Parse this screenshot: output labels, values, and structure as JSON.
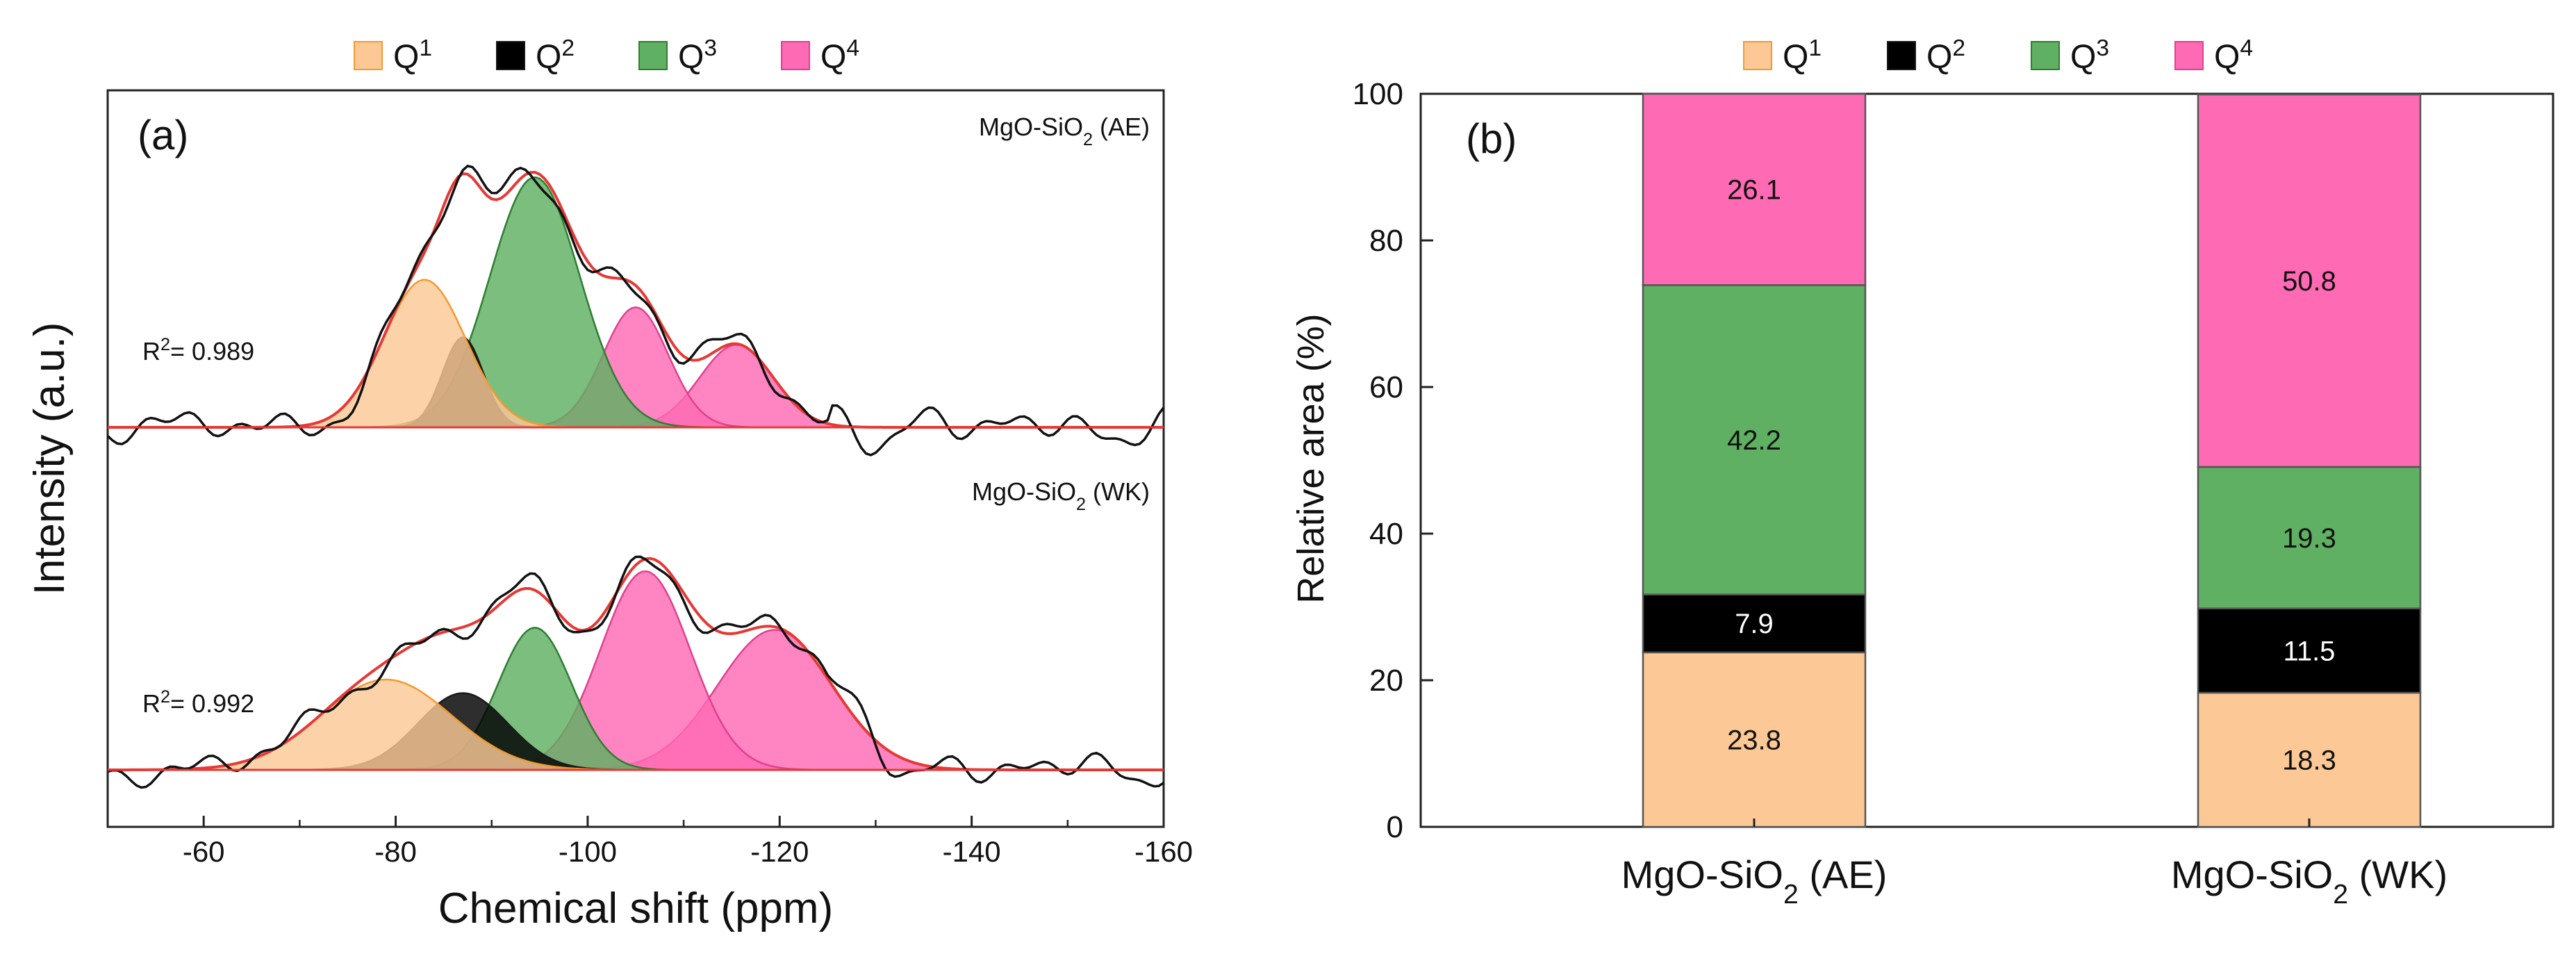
{
  "chart_data": [
    {
      "panel_label": "(a)",
      "type": "line",
      "xlabel": "Chemical shift (ppm)",
      "ylabel": "Intensity (a.u.)",
      "xlim": [
        -50,
        -160
      ],
      "x_ticks": [
        -60,
        -80,
        -100,
        -120,
        -140,
        -160
      ],
      "x_tick_labels": [
        "-60",
        "-80",
        "-100",
        "-120",
        "-140",
        "-160"
      ],
      "legend": {
        "placement": "top",
        "entries": [
          "Q",
          "Q",
          "Q",
          "Q"
        ],
        "superscripts": [
          "1",
          "2",
          "3",
          "4"
        ]
      },
      "spectra": [
        {
          "sample": "MgO-SiO",
          "sample_sub": "2",
          "sample_suffix": "(AE)",
          "fit_quality": "R",
          "fit_quality_sup": "2",
          "fit_value": "= 0.989",
          "baseline": 0,
          "envelope_peak": 1.0,
          "peaks": [
            {
              "species": "Q1",
              "center": -83,
              "height": 0.59,
              "fwhm": 10
            },
            {
              "species": "Q2",
              "center": -87,
              "height": 0.36,
              "fwhm": 5
            },
            {
              "species": "Q3",
              "center": -94.5,
              "height": 1.0,
              "fwhm": 11
            },
            {
              "species": "Q4",
              "center": -105,
              "height": 0.48,
              "fwhm": 8
            },
            {
              "species": "Q4",
              "center": -115.5,
              "height": 0.33,
              "fwhm": 9
            }
          ]
        },
        {
          "sample": "MgO-SiO",
          "sample_sub": "2",
          "sample_suffix": "(WK)",
          "fit_quality": "R",
          "fit_quality_sup": "2",
          "fit_value": "= 0.992",
          "baseline": 0,
          "envelope_peak": 1.0,
          "peaks": [
            {
              "species": "Q1",
              "center": -79,
              "height": 0.4,
              "fwhm": 16
            },
            {
              "species": "Q2",
              "center": -87,
              "height": 0.34,
              "fwhm": 11
            },
            {
              "species": "Q3",
              "center": -94.5,
              "height": 0.63,
              "fwhm": 9
            },
            {
              "species": "Q4",
              "center": -106,
              "height": 0.88,
              "fwhm": 11
            },
            {
              "species": "Q4",
              "center": -119.5,
              "height": 0.62,
              "fwhm": 14
            }
          ]
        }
      ]
    },
    {
      "panel_label": "(b)",
      "type": "bar",
      "stacked": true,
      "ylabel": "Relative area (%)",
      "ylim": [
        0,
        100
      ],
      "y_ticks": [
        0,
        20,
        40,
        60,
        80,
        100
      ],
      "y_tick_labels": [
        "0",
        "20",
        "40",
        "60",
        "80",
        "100"
      ],
      "legend": {
        "placement": "top",
        "entries": [
          "Q",
          "Q",
          "Q",
          "Q"
        ],
        "superscripts": [
          "1",
          "2",
          "3",
          "4"
        ]
      },
      "categories": [
        {
          "prefix": "MgO-SiO",
          "sub": "2",
          "suffix": " (AE)"
        },
        {
          "prefix": "MgO-SiO",
          "sub": "2",
          "suffix": " (WK)"
        }
      ],
      "series": [
        {
          "name": "Q1",
          "values": [
            23.8,
            18.3
          ],
          "labels": [
            "23.8",
            "18.3"
          ]
        },
        {
          "name": "Q2",
          "values": [
            7.9,
            11.5
          ],
          "labels": [
            "7.9",
            "11.5"
          ]
        },
        {
          "name": "Q3",
          "values": [
            42.2,
            19.3
          ],
          "labels": [
            "42.2",
            "19.3"
          ]
        },
        {
          "name": "Q4",
          "values": [
            26.1,
            50.8
          ],
          "labels": [
            "26.1",
            "50.8"
          ]
        }
      ]
    }
  ],
  "colors": {
    "Q1": "#FBC896",
    "Q2": "#000000",
    "Q3": "#5FB062",
    "Q4": "#FF6AB4",
    "Q1_edge": "#F39A2E",
    "Q2_edge": "#1a1a1a",
    "Q3_edge": "#2E7D32",
    "Q4_edge": "#E0408E",
    "experimental": "#111111",
    "fit": "#E53935"
  }
}
